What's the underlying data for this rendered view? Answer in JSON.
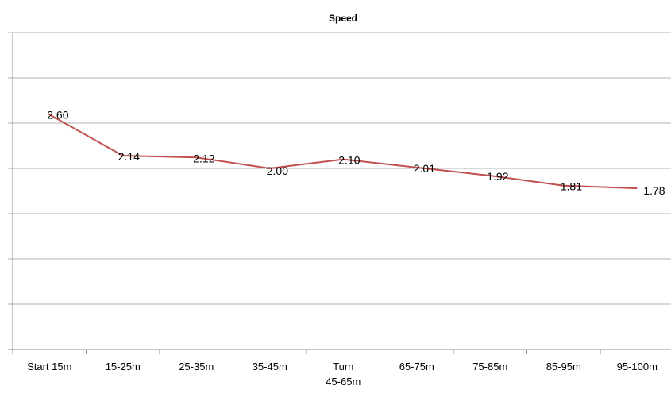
{
  "chart_data": {
    "type": "line",
    "title": "Speed",
    "categories": [
      "Start 15m",
      "15-25m",
      "25-35m",
      "35-45m",
      "Turn 45-65m",
      "65-75m",
      "75-85m",
      "85-95m",
      "95-100m"
    ],
    "category_lines": [
      [
        "Start 15m"
      ],
      [
        "15-25m"
      ],
      [
        "25-35m"
      ],
      [
        "35-45m"
      ],
      [
        "Turn",
        "45-65m"
      ],
      [
        "65-75m"
      ],
      [
        "75-85m"
      ],
      [
        "85-95m"
      ],
      [
        "95-100m"
      ]
    ],
    "series": [
      {
        "values": [
          2.6,
          2.14,
          2.12,
          2.0,
          2.1,
          2.01,
          1.92,
          1.81,
          1.78
        ],
        "labels": [
          "2.60",
          "2.14",
          "2.12",
          "2.00",
          "2.10",
          "2.01",
          "1.92",
          "1.81",
          "1.78"
        ],
        "color": "#c0504d"
      }
    ],
    "y_axis_labels_shown": false,
    "grid": true,
    "legend": "none"
  }
}
